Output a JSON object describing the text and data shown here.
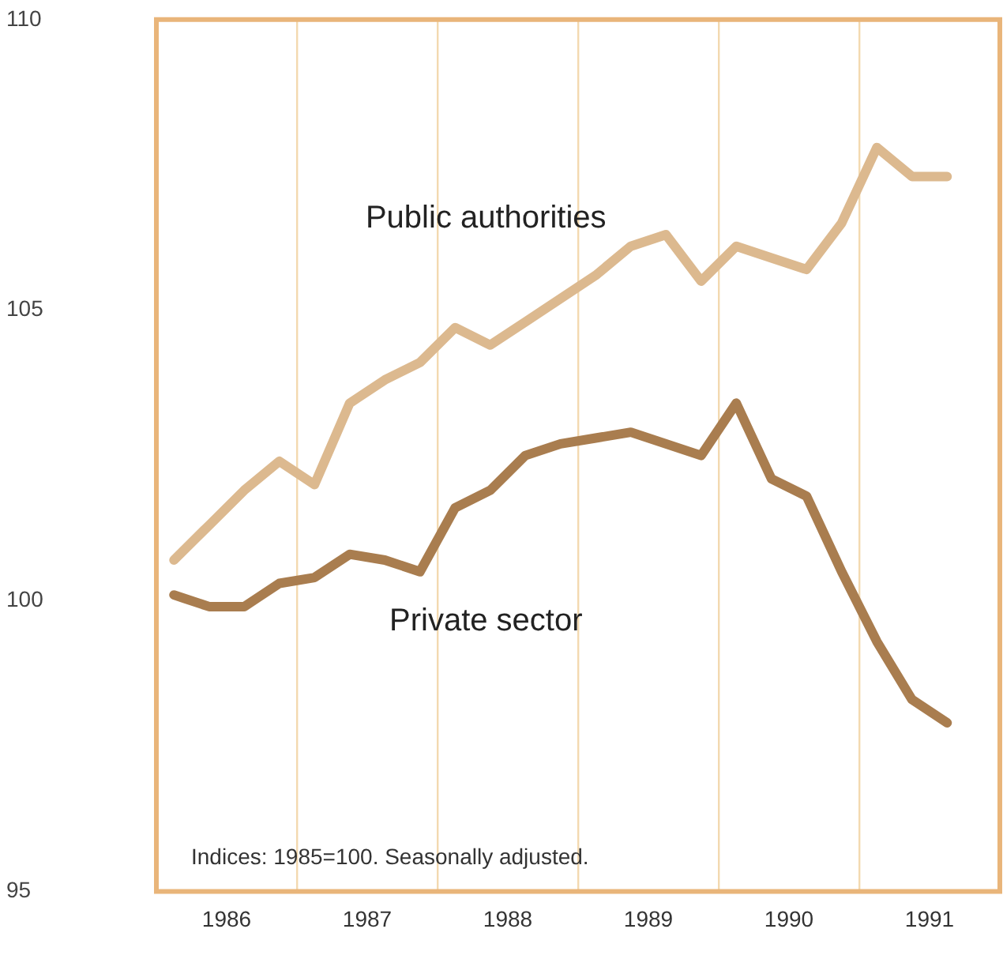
{
  "chart_data": {
    "type": "line",
    "annotations": [
      "Indices: 1985=100. Seasonally adjusted."
    ],
    "x": [
      1986.125,
      1986.375,
      1986.625,
      1986.875,
      1987.125,
      1987.375,
      1987.625,
      1987.875,
      1988.125,
      1988.375,
      1988.625,
      1988.875,
      1989.125,
      1989.375,
      1989.625,
      1989.875,
      1990.125,
      1990.375,
      1990.625,
      1990.875,
      1991.125,
      1991.375,
      1991.625
    ],
    "series": [
      {
        "name": "Public authorities",
        "color": "#dcb98f",
        "values": [
          100.7,
          101.3,
          101.9,
          102.4,
          102.0,
          103.4,
          103.8,
          104.1,
          104.7,
          104.4,
          104.8,
          105.2,
          105.6,
          106.1,
          106.3,
          105.5,
          106.1,
          105.9,
          105.7,
          106.5,
          107.8,
          107.3,
          107.3
        ]
      },
      {
        "name": "Private sector",
        "color": "#a97d4f",
        "values": [
          100.1,
          99.9,
          99.9,
          100.3,
          100.4,
          100.8,
          100.7,
          100.5,
          101.6,
          101.9,
          102.5,
          102.7,
          102.8,
          102.9,
          102.7,
          102.5,
          103.4,
          102.1,
          101.8,
          100.5,
          99.3,
          98.3,
          97.9
        ]
      }
    ],
    "xlim": [
      1986,
      1992
    ],
    "xticks": [
      {
        "value": 1986.5,
        "label": "1986"
      },
      {
        "value": 1987,
        "label": null
      },
      {
        "value": 1987.5,
        "label": "1987"
      },
      {
        "value": 1988,
        "label": null
      },
      {
        "value": 1988.5,
        "label": "1988"
      },
      {
        "value": 1989,
        "label": null
      },
      {
        "value": 1989.5,
        "label": "1989"
      },
      {
        "value": 1990,
        "label": null
      },
      {
        "value": 1990.5,
        "label": "1990"
      },
      {
        "value": 1991,
        "label": null
      },
      {
        "value": 1991.5,
        "label": "1991"
      }
    ],
    "ylim": [
      95,
      110
    ],
    "yticks": [
      95,
      100,
      105,
      110
    ],
    "grid": "x",
    "legend": false,
    "marker": "none",
    "line_style": "solid"
  }
}
